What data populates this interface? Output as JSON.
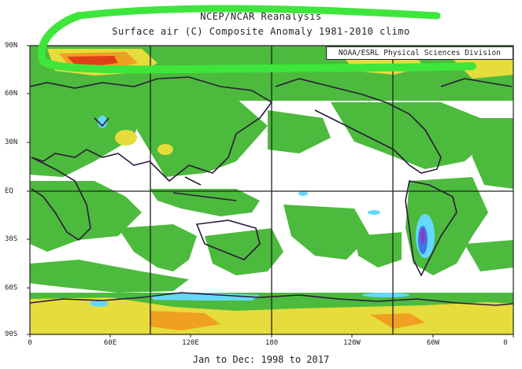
{
  "map": {
    "title_line1": "NCEP/NCAR Reanalysis",
    "title_line2": "Surface air (C) Composite Anomaly 1981-2010 climo",
    "credit": "NOAA/ESRL Physical Sciences Division",
    "footer": "Jan to Dec: 1998 to 2017",
    "lat_labels": [
      "90N",
      "60N",
      "30N",
      "EQ",
      "30S",
      "60S",
      "90S"
    ],
    "lon_labels": [
      "0",
      "60E",
      "120E",
      "180",
      "120W",
      "60W",
      "0"
    ],
    "colors": {
      "white": "#ffffff",
      "green": "#4cba3c",
      "yellow": "#e6dc3c",
      "orange": "#f0a020",
      "red": "#e04018",
      "light_blue": "#66d8ff",
      "blue": "#3c78e6",
      "purple": "#8c3cc8",
      "coastline": "#2c1a3c",
      "highlight_stroke": "#3ee63c"
    }
  }
}
